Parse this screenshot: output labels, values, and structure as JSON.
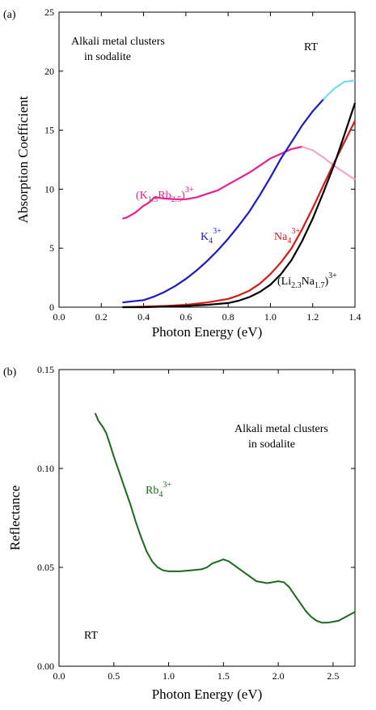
{
  "chart_data": [
    {
      "type": "line",
      "panel_label": "(a)",
      "xlabel": "Photon Energy (eV)",
      "ylabel": "Absorption Coefficient",
      "xlim": [
        0.0,
        1.4
      ],
      "ylim": [
        0,
        25
      ],
      "xticks": [
        0.0,
        0.2,
        0.4,
        0.6,
        0.8,
        1.0,
        1.2,
        1.4
      ],
      "yticks": [
        0,
        5,
        10,
        15,
        20,
        25
      ],
      "xtick_labels": [
        "0.0",
        "0.2",
        "0.4",
        "0.6",
        "0.8",
        "1.0",
        "1.2",
        "1.4"
      ],
      "ytick_labels": [
        "0",
        "5",
        "10",
        "15",
        "20",
        "25"
      ],
      "grid": false,
      "annotations": {
        "title_line1": "Alkali metal clusters",
        "title_line2": "in sodalite",
        "temperature": "RT"
      },
      "series": [
        {
          "label_parts": [
            "(K",
            "1.5",
            "Rb",
            "2.5",
            ")",
            "3+"
          ],
          "color": "#e8208a",
          "faded_color": "#f4a8c8",
          "faded_from_x": 1.15,
          "x": [
            0.3,
            0.32,
            0.34,
            0.36,
            0.38,
            0.4,
            0.42,
            0.44,
            0.45,
            0.46,
            0.48,
            0.5,
            0.55,
            0.6,
            0.65,
            0.7,
            0.75,
            0.8,
            0.85,
            0.9,
            0.95,
            1.0,
            1.05,
            1.1,
            1.15,
            1.2,
            1.25,
            1.3,
            1.35,
            1.4
          ],
          "y": [
            7.5,
            7.6,
            7.8,
            8.0,
            8.3,
            8.6,
            8.8,
            9.1,
            9.3,
            9.3,
            9.25,
            9.2,
            9.15,
            9.15,
            9.3,
            9.6,
            9.9,
            10.4,
            10.9,
            11.4,
            12.0,
            12.6,
            13.0,
            13.4,
            13.6,
            13.3,
            12.7,
            12.0,
            11.4,
            10.8
          ]
        },
        {
          "label_parts": [
            "K",
            "4",
            "3+"
          ],
          "color": "#1a1acc",
          "faded_color": "#7ad8ee",
          "faded_from_x": 1.25,
          "x": [
            0.3,
            0.35,
            0.4,
            0.45,
            0.5,
            0.55,
            0.6,
            0.65,
            0.7,
            0.75,
            0.8,
            0.85,
            0.9,
            0.95,
            1.0,
            1.05,
            1.1,
            1.15,
            1.2,
            1.25,
            1.3,
            1.35,
            1.4
          ],
          "y": [
            0.4,
            0.5,
            0.6,
            0.9,
            1.3,
            1.8,
            2.4,
            3.1,
            3.9,
            4.8,
            5.8,
            6.9,
            8.1,
            9.5,
            11.0,
            12.6,
            14.0,
            15.4,
            16.6,
            17.6,
            18.5,
            19.1,
            19.2
          ]
        },
        {
          "label_parts": [
            "Na",
            "4",
            "3+"
          ],
          "color": "#d81818",
          "x": [
            0.3,
            0.4,
            0.5,
            0.6,
            0.7,
            0.8,
            0.85,
            0.9,
            0.95,
            1.0,
            1.05,
            1.1,
            1.15,
            1.2,
            1.25,
            1.3,
            1.35,
            1.4
          ],
          "y": [
            0.0,
            0.05,
            0.1,
            0.2,
            0.4,
            0.7,
            1.0,
            1.4,
            2.0,
            2.8,
            3.8,
            5.0,
            6.6,
            8.4,
            10.3,
            12.2,
            14.0,
            15.8
          ]
        },
        {
          "label_parts": [
            "(Li",
            "2.3",
            "Na",
            "1.7",
            ")",
            "3+"
          ],
          "color": "#000000",
          "x": [
            0.3,
            0.4,
            0.5,
            0.6,
            0.7,
            0.8,
            0.85,
            0.9,
            0.95,
            1.0,
            1.05,
            1.1,
            1.15,
            1.2,
            1.25,
            1.3,
            1.35,
            1.4
          ],
          "y": [
            0.0,
            0.0,
            0.05,
            0.1,
            0.2,
            0.35,
            0.55,
            0.85,
            1.3,
            1.9,
            2.8,
            4.0,
            5.6,
            7.5,
            9.7,
            12.0,
            14.6,
            17.3
          ]
        }
      ]
    },
    {
      "type": "line",
      "panel_label": "(b)",
      "xlabel": "Photon Energy (eV)",
      "ylabel": "Reflectance",
      "xlim": [
        0.0,
        2.7
      ],
      "ylim": [
        0.0,
        0.15
      ],
      "xticks": [
        0.0,
        0.5,
        1.0,
        1.5,
        2.0,
        2.5
      ],
      "yticks": [
        0.0,
        0.05,
        0.1,
        0.15
      ],
      "xtick_labels": [
        "0.0",
        "0.5",
        "1.0",
        "1.5",
        "2.0",
        "2.5"
      ],
      "ytick_labels": [
        "0.00",
        "0.05",
        "0.10",
        "0.15"
      ],
      "grid": false,
      "annotations": {
        "title_line1": "Alkali metal clusters",
        "title_line2": "in sodalite",
        "temperature": "RT"
      },
      "series": [
        {
          "label_parts": [
            "Rb",
            "4",
            "3+"
          ],
          "color": "#1a6a1a",
          "x": [
            0.33,
            0.36,
            0.4,
            0.43,
            0.46,
            0.5,
            0.55,
            0.6,
            0.65,
            0.7,
            0.75,
            0.8,
            0.85,
            0.9,
            0.95,
            1.0,
            1.1,
            1.2,
            1.3,
            1.35,
            1.4,
            1.45,
            1.5,
            1.55,
            1.6,
            1.7,
            1.8,
            1.9,
            2.0,
            2.05,
            2.1,
            2.15,
            2.2,
            2.25,
            2.3,
            2.35,
            2.4,
            2.45,
            2.5,
            2.55,
            2.6,
            2.65,
            2.7
          ],
          "y": [
            0.128,
            0.124,
            0.121,
            0.118,
            0.113,
            0.106,
            0.098,
            0.09,
            0.082,
            0.073,
            0.065,
            0.058,
            0.053,
            0.05,
            0.0485,
            0.048,
            0.048,
            0.0485,
            0.049,
            0.05,
            0.052,
            0.053,
            0.054,
            0.053,
            0.051,
            0.047,
            0.043,
            0.042,
            0.043,
            0.0425,
            0.04,
            0.036,
            0.032,
            0.028,
            0.025,
            0.023,
            0.022,
            0.022,
            0.0225,
            0.023,
            0.0245,
            0.026,
            0.0275
          ]
        }
      ]
    }
  ]
}
